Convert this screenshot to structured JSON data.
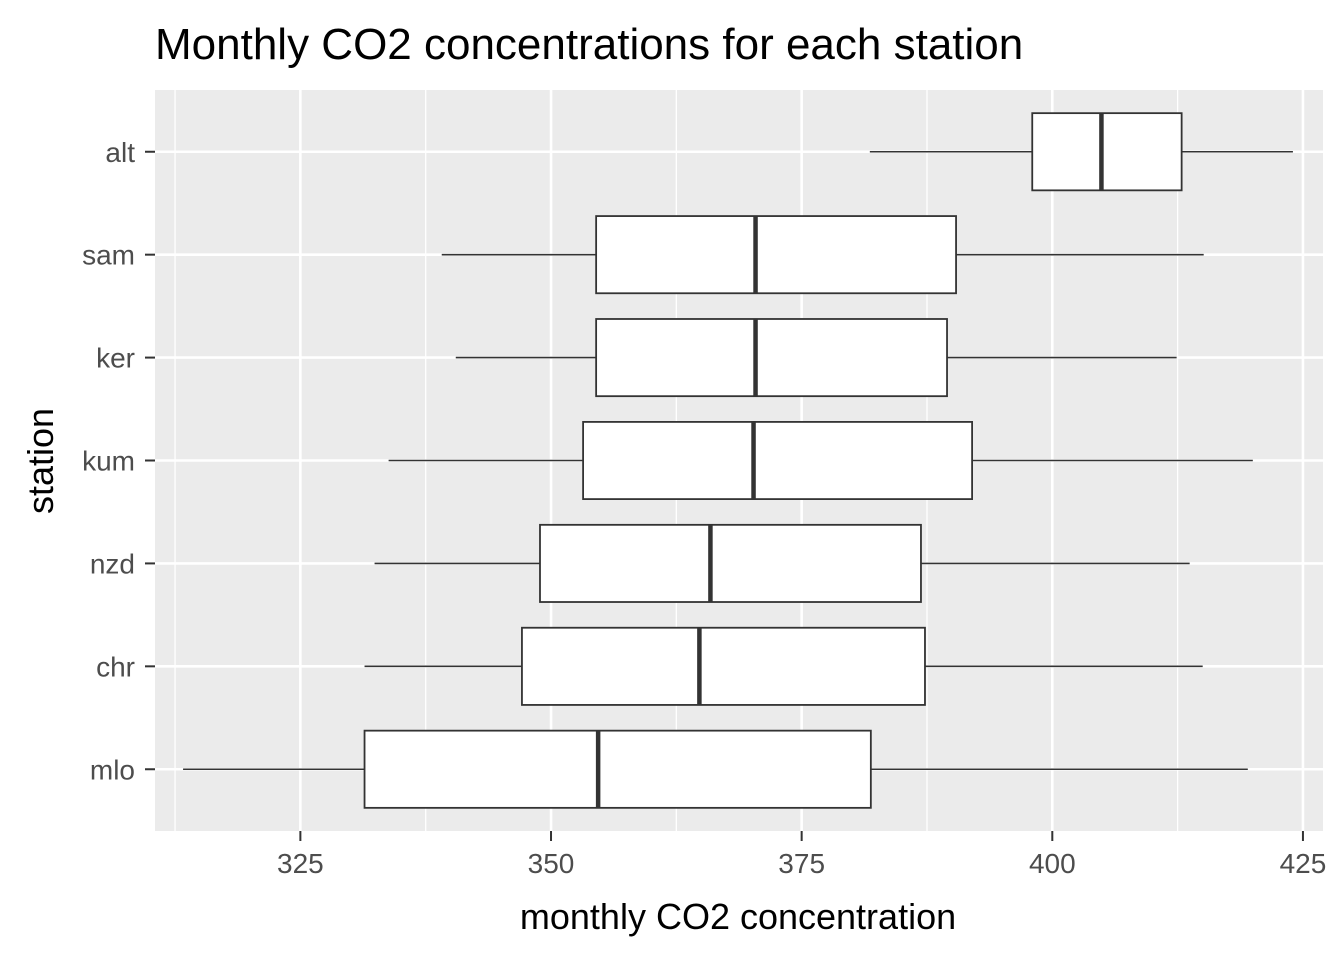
{
  "chart_data": {
    "type": "boxplot",
    "orientation": "horizontal",
    "title": "Monthly CO2 concentrations for each station",
    "xlabel": "monthly CO2 concentration",
    "ylabel": "station",
    "xlim": [
      310.5,
      427
    ],
    "x_ticks": [
      325,
      350,
      375,
      400,
      425
    ],
    "x_tick_labels": [
      "325",
      "350",
      "375",
      "400",
      "425"
    ],
    "x_minor_ticks": [
      312.5,
      337.5,
      362.5,
      387.5,
      412.5
    ],
    "grid": true,
    "colors": {
      "panel": "#ebebeb",
      "grid": "#ffffff",
      "box_fill": "#ffffff",
      "box_stroke": "#333333",
      "ticks": "#333333"
    },
    "series": [
      {
        "name": "alt",
        "whisker_low": 381.8,
        "q1": 398.0,
        "median": 404.9,
        "q3": 412.9,
        "whisker_high": 424.0
      },
      {
        "name": "sam",
        "whisker_low": 339.1,
        "q1": 354.5,
        "median": 370.4,
        "q3": 390.4,
        "whisker_high": 415.1
      },
      {
        "name": "ker",
        "whisker_low": 340.5,
        "q1": 354.5,
        "median": 370.4,
        "q3": 389.5,
        "whisker_high": 412.4
      },
      {
        "name": "kum",
        "whisker_low": 333.8,
        "q1": 353.2,
        "median": 370.2,
        "q3": 392.0,
        "whisker_high": 420.0
      },
      {
        "name": "nzd",
        "whisker_low": 332.4,
        "q1": 348.9,
        "median": 365.9,
        "q3": 386.9,
        "whisker_high": 413.7
      },
      {
        "name": "chr",
        "whisker_low": 331.4,
        "q1": 347.1,
        "median": 364.8,
        "q3": 387.3,
        "whisker_high": 415.0
      },
      {
        "name": "mlo",
        "whisker_low": 313.3,
        "q1": 331.4,
        "median": 354.7,
        "q3": 381.9,
        "whisker_high": 419.5
      }
    ]
  }
}
